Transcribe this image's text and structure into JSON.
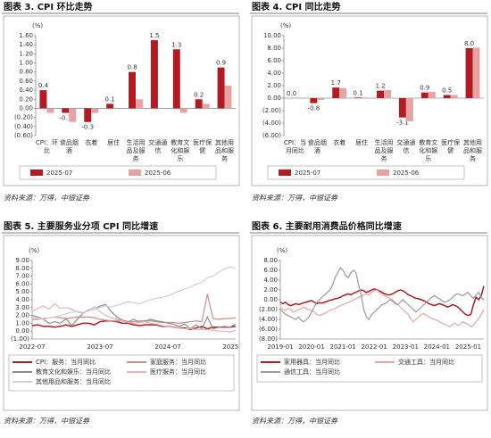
{
  "chart_data": [
    {
      "type": "bar",
      "title": "图表 3. CPI 环比走势",
      "unit": "(%)",
      "source": "资料来源：万得，中银证券",
      "categories": [
        "CPI：环比",
        "食品烟酒",
        "衣着",
        "居住",
        "生活用品及服务",
        "交通通信",
        "教育文化和娱乐",
        "医疗保健",
        "其他用品和服务"
      ],
      "series": [
        {
          "name": "2025-07",
          "color": "#b01c24",
          "values": [
            0.4,
            -0.1,
            -0.3,
            0.1,
            0.8,
            1.5,
            1.3,
            0.2,
            0.9
          ],
          "value_labels": [
            "0.4",
            "-0.1",
            "-0.3",
            "0.1",
            "0.8",
            "1.5",
            "1.3",
            "0.2",
            "0.9"
          ]
        },
        {
          "name": "2025-06",
          "color": "#e6a3a3",
          "values": [
            -0.1,
            -0.3,
            -0.1,
            0.0,
            0.2,
            0.0,
            -0.1,
            0.1,
            0.5
          ]
        }
      ],
      "ylim": [
        -0.6,
        1.6
      ],
      "yticks": [
        {
          "value": -0.6,
          "label": "(0.60)"
        },
        {
          "value": -0.4,
          "label": "(0.40)"
        },
        {
          "value": -0.2,
          "label": "(0.20)"
        },
        {
          "value": 0,
          "label": "0.00"
        },
        {
          "value": 0.2,
          "label": "0.20"
        },
        {
          "value": 0.4,
          "label": "0.40"
        },
        {
          "value": 0.6,
          "label": "0.60"
        },
        {
          "value": 0.8,
          "label": "0.80"
        },
        {
          "value": 1,
          "label": "1.00"
        },
        {
          "value": 1.2,
          "label": "1.20"
        },
        {
          "value": 1.4,
          "label": "1.40"
        },
        {
          "value": 1.6,
          "label": "1.60"
        }
      ],
      "legend": "bottom"
    },
    {
      "type": "bar",
      "title": "图表 4. CPI 同比走势",
      "unit": "(%)",
      "source": "资料来源：万得，中银证券",
      "categories": [
        "CPI：当月同比",
        "食品烟酒",
        "衣着",
        "居住",
        "生活用品及服务",
        "交通通信",
        "教育文化和娱乐",
        "医疗保健",
        "其他用品和服务"
      ],
      "series": [
        {
          "name": "2025-07",
          "color": "#b01c24",
          "values": [
            0,
            -0.8,
            1.7,
            0.1,
            1.2,
            -3.1,
            0.9,
            0.5,
            8
          ],
          "value_labels": [
            "0.0",
            "-0.8",
            "1.7",
            "0.1",
            "1.2",
            "-3.1",
            "0.9",
            "0.5",
            "8.0"
          ]
        },
        {
          "name": "2025-06",
          "color": "#e6a3a3",
          "values": [
            0.1,
            -0.3,
            1.6,
            0.1,
            1.3,
            -3.7,
            1.0,
            0.5,
            8.1
          ]
        }
      ],
      "ylim": [
        -6,
        10
      ],
      "yticks": [
        {
          "value": -6,
          "label": "(6.00)"
        },
        {
          "value": -4,
          "label": "(4.00)"
        },
        {
          "value": -2,
          "label": "(2.00)"
        },
        {
          "value": 0,
          "label": "0.00"
        },
        {
          "value": 2,
          "label": "2.00"
        },
        {
          "value": 4,
          "label": "4.00"
        },
        {
          "value": 6,
          "label": "6.00"
        },
        {
          "value": 8,
          "label": "8.00"
        },
        {
          "value": 10,
          "label": "10.00"
        }
      ],
      "legend": "bottom"
    },
    {
      "type": "line",
      "title": "图表 5. 主要服务业分项 CPI 同比增速",
      "unit": "(%)",
      "source": "资料来源：万得，中银证券",
      "x": [
        "2022-07",
        "2022-08",
        "2022-09",
        "2022-10",
        "2022-11",
        "2022-12",
        "2023-01",
        "2023-02",
        "2023-03",
        "2023-04",
        "2023-05",
        "2023-06",
        "2023-07",
        "2023-08",
        "2023-09",
        "2023-10",
        "2023-11",
        "2023-12",
        "2024-01",
        "2024-02",
        "2024-03",
        "2024-04",
        "2024-05",
        "2024-06",
        "2024-07",
        "2024-08",
        "2024-09",
        "2024-10",
        "2024-11",
        "2024-12",
        "2025-01",
        "2025-02",
        "2025-03",
        "2025-04",
        "2025-05",
        "2025-06",
        "2025-07"
      ],
      "xticks": [
        "2022-07",
        "2023-07",
        "2024-07",
        "2025-07"
      ],
      "series": [
        {
          "name": "CPI：服务：当月同比",
          "color": "#b01c24",
          "values": [
            0.7,
            0.8,
            0.6,
            0.6,
            0.5,
            0.6,
            0.8,
            0.6,
            0.8,
            1.0,
            1.0,
            0.8,
            1.2,
            1.3,
            1.3,
            1.2,
            1.0,
            1.0,
            0.8,
            0.7,
            0.8,
            0.8,
            0.8,
            0.6,
            0.6,
            0.5,
            0.4,
            0.4,
            0.2,
            0.4,
            0.6,
            0.3,
            0.5,
            0.5,
            0.5,
            0.5,
            0.6
          ]
        },
        {
          "name": "家庭服务：当月同比",
          "color": "#c9908a",
          "values": [
            1.5,
            1.5,
            1.6,
            1.7,
            1.8,
            1.7,
            1.6,
            1.7,
            1.8,
            1.8,
            1.8,
            1.7,
            1.5,
            1.4,
            1.3,
            1.3,
            1.3,
            1.2,
            1.2,
            1.3,
            1.3,
            1.3,
            1.2,
            1.1,
            1.1,
            1.1,
            1.0,
            1.1,
            1.2,
            1.3,
            1.2,
            4.7,
            1.6,
            1.5,
            1.6,
            1.6,
            1.7
          ]
        },
        {
          "name": "教育文化和娱乐：当月同比",
          "color": "#8c8c8c",
          "values": [
            2.0,
            1.8,
            1.5,
            1.0,
            1.2,
            1.0,
            1.6,
            0.7,
            1.5,
            2.3,
            2.7,
            2.8,
            3.2,
            3.4,
            2.5,
            1.8,
            1.4,
            1.2,
            1.5,
            1.1,
            1.3,
            1.5,
            1.3,
            1.2,
            1.0,
            0.9,
            0.6,
            0.9,
            0.3,
            0.8,
            0.3,
            1.8,
            0.3,
            0.5,
            0.6,
            0.5,
            0.9
          ]
        },
        {
          "name": "医疗服务：当月同比",
          "color": "#eeb0b0",
          "values": [
            2.5,
            2.9,
            3.2,
            2.8,
            3.5,
            2.9,
            3.0,
            2.8,
            2.4,
            2.3,
            2.6,
            3.1,
            2.5,
            2.0,
            1.7,
            1.5,
            1.3,
            1.1,
            1.0,
            1.1,
            1.2,
            1.0,
            0.9,
            0.7,
            0.6,
            0.5,
            0.4,
            0.3,
            0.3,
            0.2,
            0.2,
            0.2,
            0.1,
            0.0,
            0.0,
            -0.1,
            0.1
          ]
        },
        {
          "name": "其他用品和服务：当月同比",
          "color": "#d0d0d0",
          "values": [
            1.8,
            1.6,
            1.5,
            1.7,
            1.8,
            2.0,
            2.2,
            2.4,
            2.5,
            2.4,
            2.6,
            2.8,
            3.0,
            3.2,
            3.1,
            3.3,
            3.5,
            3.8,
            3.6,
            3.5,
            3.8,
            4.0,
            4.2,
            4.3,
            4.5,
            4.8,
            5.1,
            5.4,
            5.6,
            6.0,
            6.2,
            6.8,
            7.0,
            7.5,
            7.9,
            8.2,
            8.0
          ]
        }
      ],
      "ylim": [
        -1,
        9
      ],
      "yticks": [
        {
          "value": -1,
          "label": "(1.00)"
        },
        {
          "value": 0,
          "label": "0.00"
        },
        {
          "value": 1,
          "label": "1.00"
        },
        {
          "value": 2,
          "label": "2.00"
        },
        {
          "value": 3,
          "label": "3.00"
        },
        {
          "value": 4,
          "label": "4.00"
        },
        {
          "value": 5,
          "label": "5.00"
        },
        {
          "value": 6,
          "label": "6.00"
        },
        {
          "value": 7,
          "label": "7.00"
        },
        {
          "value": 8,
          "label": "8.00"
        },
        {
          "value": 9,
          "label": "9.00"
        }
      ],
      "legend": "bottom"
    },
    {
      "type": "line",
      "title": "图表 6. 主要耐用消费品价格同比增速",
      "unit": "(%)",
      "source": "资料来源：万得，中银证券",
      "x": [
        "2019-01",
        "2019-02",
        "2019-03",
        "2019-04",
        "2019-05",
        "2019-06",
        "2019-07",
        "2019-08",
        "2019-09",
        "2019-10",
        "2019-11",
        "2019-12",
        "2020-01",
        "2020-02",
        "2020-03",
        "2020-04",
        "2020-05",
        "2020-06",
        "2020-07",
        "2020-08",
        "2020-09",
        "2020-10",
        "2020-11",
        "2020-12",
        "2021-01",
        "2021-02",
        "2021-03",
        "2021-04",
        "2021-05",
        "2021-06",
        "2021-07",
        "2021-08",
        "2021-09",
        "2021-10",
        "2021-11",
        "2021-12",
        "2022-01",
        "2022-02",
        "2022-03",
        "2022-04",
        "2022-05",
        "2022-06",
        "2022-07",
        "2022-08",
        "2022-09",
        "2022-10",
        "2022-11",
        "2022-12",
        "2023-01",
        "2023-02",
        "2023-03",
        "2023-04",
        "2023-05",
        "2023-06",
        "2023-07",
        "2023-08",
        "2023-09",
        "2023-10",
        "2023-11",
        "2023-12",
        "2024-01",
        "2024-02",
        "2024-03",
        "2024-04",
        "2024-05",
        "2024-06",
        "2024-07",
        "2024-08",
        "2024-09",
        "2024-10",
        "2024-11",
        "2024-12",
        "2025-01",
        "2025-02",
        "2025-03",
        "2025-04",
        "2025-05",
        "2025-06",
        "2025-07"
      ],
      "xticks": [
        "2019-01",
        "2020-01",
        "2021-01",
        "2022-01",
        "2023-01",
        "2024-01",
        "2025-01"
      ],
      "series": [
        {
          "name": "家用器具：当月同比",
          "color": "#b01c24",
          "values": [
            -0.5,
            -0.8,
            -0.5,
            -1.0,
            -1.2,
            -1.0,
            -0.8,
            -1.0,
            -0.8,
            -0.6,
            -0.5,
            -0.3,
            -0.2,
            -0.5,
            -0.8,
            -0.6,
            -0.7,
            -0.5,
            -0.3,
            -0.1,
            0.0,
            0.2,
            0.3,
            0.5,
            0.8,
            1.0,
            1.2,
            1.0,
            1.3,
            1.5,
            1.8,
            2.0,
            1.8,
            1.5,
            1.7,
            2.0,
            2.2,
            2.0,
            1.8,
            1.5,
            1.2,
            1.0,
            1.0,
            1.2,
            1.5,
            1.8,
            2.0,
            1.8,
            1.5,
            1.0,
            0.8,
            0.5,
            0.3,
            0.2,
            0.0,
            -0.2,
            -0.5,
            -0.8,
            -1.0,
            -1.2,
            -1.0,
            -0.8,
            -1.0,
            -1.2,
            -1.5,
            -1.3,
            -1.0,
            -1.2,
            -1.5,
            -2.0,
            -2.5,
            -3.0,
            -3.2,
            -3.0,
            -1.0,
            0.5,
            0.0,
            0.8,
            2.8
          ]
        },
        {
          "name": "交通工具：当月同比",
          "color": "#e6a3a3",
          "values": [
            -1.5,
            -2.0,
            -2.2,
            -1.8,
            -2.0,
            -2.5,
            -2.3,
            -2.0,
            -1.8,
            -1.5,
            -1.8,
            -2.0,
            -2.2,
            -2.5,
            -3.0,
            -3.2,
            -3.0,
            -2.8,
            -2.5,
            -2.2,
            -2.0,
            -1.8,
            -1.5,
            -1.2,
            -1.0,
            -0.8,
            -0.5,
            -0.3,
            0.0,
            0.2,
            0.5,
            0.8,
            1.0,
            1.2,
            1.0,
            1.5,
            1.8,
            2.0,
            1.5,
            1.2,
            0.8,
            0.5,
            0.3,
            0.0,
            -0.5,
            -1.0,
            -1.5,
            -2.0,
            -2.5,
            -3.0,
            -4.0,
            -4.5,
            -4.0,
            -3.5,
            -3.0,
            -2.8,
            -3.2,
            -3.5,
            -3.8,
            -4.0,
            -4.2,
            -4.5,
            -4.8,
            -5.0,
            -5.2,
            -5.5,
            -5.0,
            -4.8,
            -5.2,
            -5.0,
            -4.5,
            -4.8,
            -5.0,
            -5.5,
            -5.2,
            -4.5,
            -3.8,
            -3.0,
            -2.0
          ]
        },
        {
          "name": "通信工具：当月同比",
          "color": "#999999",
          "values": [
            -2.0,
            -2.5,
            -3.0,
            -3.2,
            -3.5,
            -3.8,
            -4.0,
            -3.5,
            -4.2,
            -4.5,
            -4.0,
            -3.5,
            -2.5,
            -1.5,
            -0.5,
            0.0,
            0.5,
            1.0,
            1.5,
            2.0,
            3.0,
            4.5,
            5.5,
            6.5,
            6.0,
            5.0,
            4.5,
            5.5,
            6.0,
            5.5,
            3.0,
            1.0,
            -2.0,
            -3.5,
            -4.0,
            -3.0,
            -2.5,
            -2.0,
            -1.5,
            -1.0,
            -0.8,
            -0.5,
            0.0,
            -0.3,
            -0.8,
            -1.0,
            -0.5,
            0.0,
            -0.5,
            -1.0,
            -1.5,
            -2.0,
            -2.5,
            -2.0,
            -1.5,
            -1.0,
            -0.5,
            0.0,
            0.5,
            0.8,
            0.5,
            0.2,
            -0.2,
            -0.5,
            -0.3,
            0.0,
            0.5,
            1.0,
            1.2,
            1.0,
            0.8,
            1.2,
            1.5,
            0.8,
            0.3,
            1.0,
            1.5,
            0.5,
            -0.1
          ]
        }
      ],
      "ylim": [
        -8,
        8
      ],
      "yticks": [
        {
          "value": -8,
          "label": "(8.00)"
        },
        {
          "value": -6,
          "label": "(6.00)"
        },
        {
          "value": -4,
          "label": "(4.00)"
        },
        {
          "value": -2,
          "label": "(2.00)"
        },
        {
          "value": 0,
          "label": "0.00"
        },
        {
          "value": 2,
          "label": "2.00"
        },
        {
          "value": 4,
          "label": "4.00"
        },
        {
          "value": 6,
          "label": "6.00"
        },
        {
          "value": 8,
          "label": "8.00"
        }
      ],
      "legend": "bottom"
    }
  ]
}
